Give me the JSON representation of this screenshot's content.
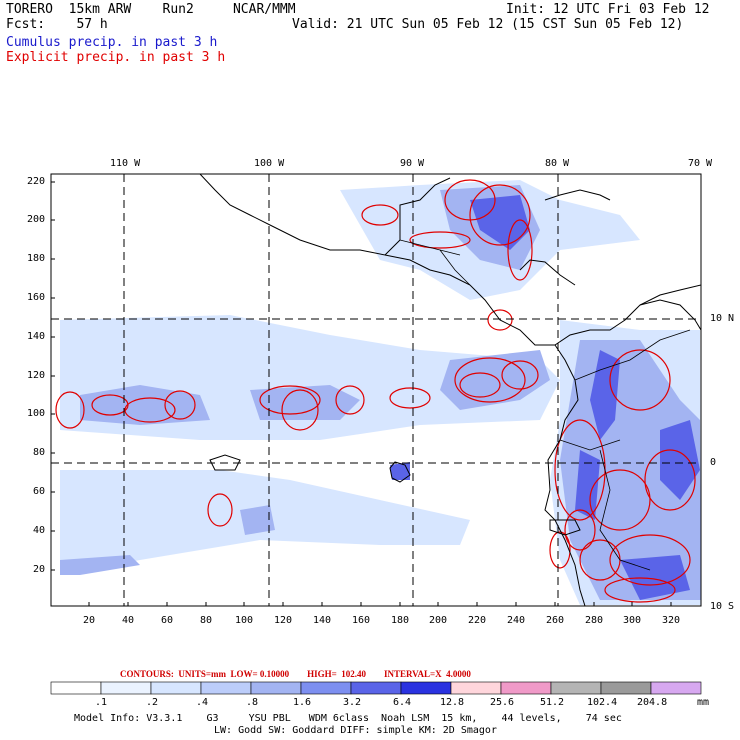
{
  "header": {
    "model_line": "TORERO  15km ARW    Run2     NCAR/MMM",
    "init": "Init: 12 UTC Fri 03 Feb 12",
    "fcst": "Fcst:    57 h",
    "valid": "Valid: 21 UTC Sun 05 Feb 12 (15 CST Sun 05 Feb 12)",
    "field1": "Cumulus precip. in past 3 h",
    "field2": "Explicit precip. in past 3 h"
  },
  "top_axis": {
    "labels": [
      "110 W",
      "100 W",
      "90 W",
      "80 W",
      "70 W"
    ]
  },
  "right_axis": {
    "labels": [
      "10 N",
      "0",
      "10 S"
    ]
  },
  "left_axis": {
    "labels": [
      "220",
      "200",
      "180",
      "160",
      "140",
      "120",
      "100",
      "80",
      "60",
      "40",
      "20"
    ]
  },
  "bottom_axis": {
    "labels": [
      "20",
      "40",
      "60",
      "80",
      "100",
      "120",
      "140",
      "160",
      "180",
      "200",
      "220",
      "240",
      "260",
      "280",
      "300",
      "320"
    ]
  },
  "contour_info": "CONTOURS:  UNITS=mm  LOW= 0.10000        HIGH=  102.40        INTERVAL=X  4.0000",
  "colorbar": {
    "labels": [
      ".1",
      ".2",
      ".4",
      ".8",
      "1.6",
      "3.2",
      "6.4",
      "12.8",
      "25.6",
      "51.2",
      "102.4",
      "204.8"
    ],
    "unit": "mm",
    "colors": [
      "#ffffff",
      "#ebf3ff",
      "#d7e6ff",
      "#bccdfa",
      "#a3b4f2",
      "#7d8ff0",
      "#5a64e8",
      "#2a32e0",
      "#ffd6dc",
      "#f09ac8",
      "#b4b4b4",
      "#9a9a9a",
      "#d7a8f0"
    ]
  },
  "model_info": {
    "line1": "Model Info: V3.3.1    G3     YSU PBL   WDM 6class  Noah LSM  15 km,    44 levels,    74 sec",
    "line2": "LW: Godd SW: Goddard DIFF: simple KM: 2D Smagor"
  }
}
